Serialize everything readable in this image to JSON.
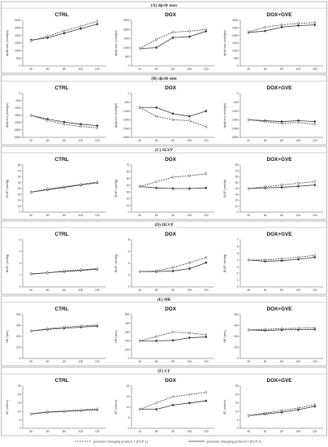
{
  "colors": {
    "line": "#333333",
    "frame": "#888888",
    "background": "#ffffff"
  },
  "legend": {
    "pcp1": "pressure changing protocol 1 (PCP 1)",
    "pcp2": "pressure changing protocol 2 (PCP 2)"
  },
  "chart_data": [
    {
      "section": "(A) dp/dt max",
      "panel": "CTRL",
      "type": "line",
      "ylabel": "dp/dt max (mmHg/s)",
      "x": [
        40,
        60,
        80,
        100,
        120
      ],
      "ylim": [
        0,
        3000
      ],
      "yticks": [
        0,
        500,
        1000,
        1500,
        2000,
        2500,
        3000
      ],
      "series": [
        {
          "values": [
            1700,
            1850,
            2150,
            2450,
            2750
          ],
          "dashed": false
        },
        {
          "values": [
            1650,
            1950,
            2300,
            2600,
            2950
          ],
          "dashed": true
        }
      ]
    },
    {
      "section": "(A) dp/dt max",
      "panel": "DOX",
      "type": "line",
      "ylabel": "dp/dt max (mmHg/s)",
      "x": [
        40,
        60,
        80,
        100,
        120
      ],
      "ylim": [
        0,
        2500
      ],
      "yticks": [
        0,
        500,
        1000,
        1500,
        2000,
        2500
      ],
      "series": [
        {
          "values": [
            950,
            1000,
            1550,
            1600,
            1900
          ],
          "dashed": false
        },
        {
          "values": [
            950,
            1450,
            1850,
            1900,
            2000
          ],
          "dashed": true
        }
      ]
    },
    {
      "section": "(A) dp/dt max",
      "panel": "DOX+GVE",
      "type": "line",
      "ylabel": "dp/dt max (mmHg/s)",
      "x": [
        40,
        60,
        80,
        100,
        120
      ],
      "ylim": [
        0,
        3000
      ],
      "yticks": [
        0,
        500,
        1000,
        1500,
        2000,
        2500,
        3000
      ],
      "series": [
        {
          "values": [
            2200,
            2300,
            2550,
            2650,
            2700
          ],
          "dashed": false
        },
        {
          "values": [
            2250,
            2550,
            2700,
            2800,
            2850
          ],
          "dashed": true
        }
      ]
    },
    {
      "section": "(B) dp/dt min",
      "panel": "CTRL",
      "type": "line",
      "ylabel": "dp/dt min (mmHg/s)",
      "x": [
        40,
        60,
        80,
        100,
        120
      ],
      "ylim": [
        -3000,
        0
      ],
      "yticks": [
        0,
        -500,
        -1000,
        -1500,
        -2000,
        -2500,
        -3000
      ],
      "series": [
        {
          "values": [
            -1500,
            -1750,
            -1950,
            -2100,
            -2200
          ],
          "dashed": false
        },
        {
          "values": [
            -1500,
            -1850,
            -2100,
            -2250,
            -2350
          ],
          "dashed": true
        }
      ]
    },
    {
      "section": "(B) dp/dt min",
      "panel": "DOX",
      "type": "line",
      "ylabel": "dp/dt min (mmHg/s)",
      "x": [
        40,
        60,
        80,
        100,
        120
      ],
      "ylim": [
        -2500,
        0
      ],
      "yticks": [
        0,
        -500,
        -1000,
        -1500,
        -2000,
        -2500
      ],
      "series": [
        {
          "values": [
            -800,
            -800,
            -1150,
            -1300,
            -1000
          ],
          "dashed": false
        },
        {
          "values": [
            -800,
            -1300,
            -1500,
            -1550,
            -1900
          ],
          "dashed": true
        }
      ]
    },
    {
      "section": "(B) dp/dt min",
      "panel": "DOX+GVE",
      "type": "line",
      "ylabel": "dp/dt min (mmHg/s)",
      "x": [
        40,
        60,
        80,
        100,
        120
      ],
      "ylim": [
        -2500,
        0
      ],
      "yticks": [
        0,
        -500,
        -1000,
        -1500,
        -2000,
        -2500
      ],
      "series": [
        {
          "values": [
            -1500,
            -1550,
            -1600,
            -1550,
            -1600
          ],
          "dashed": false
        },
        {
          "values": [
            -1500,
            -1600,
            -1700,
            -1650,
            -1750
          ],
          "dashed": true
        }
      ]
    },
    {
      "section": "(C) SLVP",
      "panel": "CTRL",
      "type": "line",
      "ylabel": "SLVP (mmHg)",
      "x": [
        40,
        60,
        80,
        100,
        120
      ],
      "ylim": [
        0,
        80
      ],
      "yticks": [
        0,
        10,
        20,
        30,
        40,
        50,
        60,
        70,
        80
      ],
      "series": [
        {
          "values": [
            34,
            38,
            42,
            46,
            50
          ],
          "dashed": false
        },
        {
          "values": [
            34,
            39,
            43,
            47,
            51
          ],
          "dashed": true
        }
      ]
    },
    {
      "section": "(C) SLVP",
      "panel": "DOX",
      "type": "line",
      "ylabel": "SLVP (mmHg)",
      "x": [
        40,
        60,
        80,
        100,
        120
      ],
      "ylim": [
        0,
        70
      ],
      "yticks": [
        0,
        10,
        20,
        30,
        40,
        50,
        60,
        70
      ],
      "series": [
        {
          "values": [
            38,
            36,
            35,
            35,
            36
          ],
          "dashed": false
        },
        {
          "values": [
            38,
            45,
            52,
            54,
            57
          ],
          "dashed": true
        }
      ]
    },
    {
      "section": "(C) SLVP",
      "panel": "DOX+GVE",
      "type": "line",
      "ylabel": "SLVP (mmHg)",
      "x": [
        40,
        60,
        80,
        100,
        120
      ],
      "ylim": [
        0,
        80
      ],
      "yticks": [
        0,
        10,
        20,
        30,
        40,
        50,
        60,
        70,
        80
      ],
      "series": [
        {
          "values": [
            40,
            41,
            42,
            44,
            46
          ],
          "dashed": false
        },
        {
          "values": [
            40,
            43,
            46,
            49,
            52
          ],
          "dashed": true
        }
      ]
    },
    {
      "section": "(D) DLVP",
      "panel": "CTRL",
      "type": "line",
      "ylabel": "DLVP (mmHg)",
      "x": [
        40,
        60,
        80,
        100,
        120
      ],
      "ylim": [
        0,
        4
      ],
      "yticks": [
        0,
        1,
        2,
        3,
        4
      ],
      "series": [
        {
          "values": [
            1.1,
            1.2,
            1.3,
            1.4,
            1.5
          ],
          "dashed": false
        },
        {
          "values": [
            1.1,
            1.2,
            1.35,
            1.45,
            1.55
          ],
          "dashed": true
        }
      ]
    },
    {
      "section": "(D) DLVP",
      "panel": "DOX",
      "type": "line",
      "ylabel": "DLVP (mmHg)",
      "x": [
        40,
        60,
        80,
        100,
        120
      ],
      "ylim": [
        0,
        8
      ],
      "yticks": [
        0,
        2,
        4,
        6,
        8
      ],
      "series": [
        {
          "values": [
            2.6,
            2.6,
            2.7,
            3.1,
            4.1
          ],
          "dashed": false
        },
        {
          "values": [
            2.6,
            2.7,
            3.3,
            4.1,
            5.0
          ],
          "dashed": true
        }
      ]
    },
    {
      "section": "(D) DLVP",
      "panel": "DOX+GVE",
      "type": "line",
      "ylabel": "DLVP (mmHg)",
      "x": [
        40,
        60,
        80,
        100,
        120
      ],
      "ylim": [
        0,
        7
      ],
      "yticks": [
        0,
        1,
        2,
        3,
        4,
        5,
        6,
        7
      ],
      "series": [
        {
          "values": [
            4.0,
            3.8,
            3.9,
            4.1,
            4.4
          ],
          "dashed": false
        },
        {
          "values": [
            4.0,
            4.0,
            4.2,
            4.4,
            4.7
          ],
          "dashed": true
        }
      ]
    },
    {
      "section": "(E) HR",
      "panel": "CTRL",
      "type": "line",
      "ylabel": "HR (bpm)",
      "x": [
        40,
        60,
        80,
        100,
        120
      ],
      "ylim": [
        0,
        400
      ],
      "yticks": [
        0,
        100,
        200,
        300,
        400
      ],
      "series": [
        {
          "values": [
            250,
            265,
            275,
            285,
            295
          ],
          "dashed": false
        },
        {
          "values": [
            250,
            270,
            285,
            295,
            305
          ],
          "dashed": true
        }
      ]
    },
    {
      "section": "(E) HR",
      "panel": "DOX",
      "type": "line",
      "ylabel": "HR (bpm)",
      "x": [
        40,
        60,
        80,
        100,
        120
      ],
      "ylim": [
        0,
        500
      ],
      "yticks": [
        0,
        100,
        200,
        300,
        400,
        500
      ],
      "series": [
        {
          "values": [
            200,
            200,
            205,
            235,
            245
          ],
          "dashed": false
        },
        {
          "values": [
            200,
            250,
            300,
            290,
            270
          ],
          "dashed": true
        }
      ]
    },
    {
      "section": "(E) HR",
      "panel": "DOX+GVE",
      "type": "line",
      "ylabel": "HR (bpm)",
      "x": [
        40,
        60,
        80,
        100,
        120
      ],
      "ylim": [
        0,
        400
      ],
      "yticks": [
        0,
        100,
        200,
        300,
        400
      ],
      "series": [
        {
          "values": [
            260,
            255,
            260,
            262,
            265
          ],
          "dashed": false
        },
        {
          "values": [
            260,
            265,
            272,
            275,
            280
          ],
          "dashed": true
        }
      ]
    },
    {
      "section": "(F) CF",
      "panel": "CTRL",
      "type": "line",
      "ylabel": "CF (ml/min)",
      "x": [
        40,
        60,
        80,
        100,
        120
      ],
      "ylim": [
        0,
        25
      ],
      "yticks": [
        0,
        5,
        10,
        15,
        20,
        25
      ],
      "series": [
        {
          "values": [
            8.5,
            9.5,
            10,
            10.5,
            11
          ],
          "dashed": false
        },
        {
          "values": [
            8.5,
            9.8,
            10.2,
            10.8,
            11.5
          ],
          "dashed": true
        }
      ]
    },
    {
      "section": "(F) CF",
      "panel": "DOX",
      "type": "line",
      "ylabel": "CF (ml/min)",
      "x": [
        40,
        60,
        80,
        100,
        120
      ],
      "ylim": [
        0,
        20
      ],
      "yticks": [
        0,
        5,
        10,
        15,
        20
      ],
      "series": [
        {
          "values": [
            9,
            9,
            11,
            12,
            13
          ],
          "dashed": false
        },
        {
          "values": [
            9,
            12,
            15,
            16,
            17
          ],
          "dashed": true
        }
      ]
    },
    {
      "section": "(F) CF",
      "panel": "DOX+GVE",
      "type": "line",
      "ylabel": "CF (ml/min)",
      "x": [
        40,
        60,
        80,
        100,
        120
      ],
      "ylim": [
        0,
        25
      ],
      "yticks": [
        0,
        5,
        10,
        15,
        20,
        25
      ],
      "series": [
        {
          "values": [
            7.5,
            8.5,
            9.5,
            11,
            13
          ],
          "dashed": false
        },
        {
          "values": [
            7.5,
            9,
            10.5,
            12,
            14
          ],
          "dashed": true
        }
      ]
    }
  ]
}
